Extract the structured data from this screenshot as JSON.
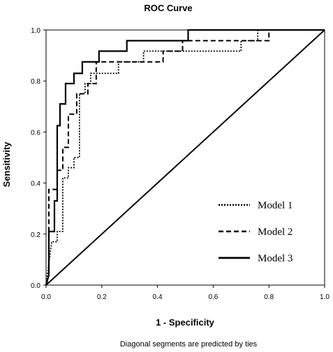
{
  "chart_data": {
    "type": "line",
    "title": "ROC Curve",
    "xlabel": "1 - Specificity",
    "ylabel": "Sensitivity",
    "footnote": "Diagonal segments are predicted by ties",
    "xlim": [
      0,
      1
    ],
    "ylim": [
      0,
      1
    ],
    "xticks": [
      "0.0",
      "0.2",
      "0.4",
      "0.6",
      "0.8",
      "1.0"
    ],
    "yticks": [
      "0.0",
      "0.2",
      "0.4",
      "0.6",
      "0.8",
      "1.0"
    ],
    "grid": false,
    "legend_position": "lower-right",
    "series": [
      {
        "name": "Model 1",
        "style": "dotted",
        "color": "#000000",
        "x": [
          0,
          0.02,
          0.04,
          0.04,
          0.06,
          0.06,
          0.08,
          0.08,
          0.1,
          0.1,
          0.12,
          0.12,
          0.14,
          0.14,
          0.16,
          0.16,
          0.18,
          0.18,
          0.26,
          0.26,
          0.35,
          0.35,
          0.5,
          0.52,
          0.52,
          0.7,
          0.7,
          0.76,
          0.76,
          1.0
        ],
        "y": [
          0,
          0.17,
          0.17,
          0.21,
          0.21,
          0.42,
          0.42,
          0.46,
          0.46,
          0.5,
          0.5,
          0.75,
          0.75,
          0.79,
          0.79,
          0.83,
          0.83,
          0.83,
          0.83,
          0.875,
          0.875,
          0.917,
          0.917,
          0.917,
          0.917,
          0.917,
          0.958,
          0.958,
          1.0,
          1.0
        ]
      },
      {
        "name": "Model 2",
        "style": "dashed",
        "color": "#000000",
        "x": [
          0,
          0.01,
          0.01,
          0.04,
          0.04,
          0.06,
          0.06,
          0.08,
          0.08,
          0.11,
          0.11,
          0.15,
          0.15,
          0.18,
          0.18,
          0.42,
          0.42,
          0.49,
          0.49,
          0.8,
          0.8,
          1.0
        ],
        "y": [
          0,
          0.04,
          0.375,
          0.375,
          0.45,
          0.45,
          0.54,
          0.54,
          0.67,
          0.67,
          0.75,
          0.75,
          0.79,
          0.79,
          0.875,
          0.875,
          0.917,
          0.917,
          0.958,
          0.958,
          1.0,
          1.0
        ]
      },
      {
        "name": "Model 3",
        "style": "solid",
        "color": "#000000",
        "x": [
          0,
          0.01,
          0.01,
          0.03,
          0.03,
          0.04,
          0.04,
          0.05,
          0.05,
          0.07,
          0.07,
          0.1,
          0.1,
          0.13,
          0.13,
          0.19,
          0.19,
          0.29,
          0.29,
          0.51,
          0.51,
          0.57,
          0.57,
          1.0
        ],
        "y": [
          0,
          0.04,
          0.21,
          0.21,
          0.33,
          0.33,
          0.625,
          0.625,
          0.71,
          0.71,
          0.79,
          0.79,
          0.83,
          0.83,
          0.875,
          0.875,
          0.917,
          0.917,
          0.958,
          0.958,
          1.0,
          1.0,
          1.0,
          1.0
        ]
      }
    ],
    "reference_line": {
      "x": [
        0,
        1
      ],
      "y": [
        0,
        1
      ],
      "style": "solid",
      "color": "#000000"
    }
  }
}
